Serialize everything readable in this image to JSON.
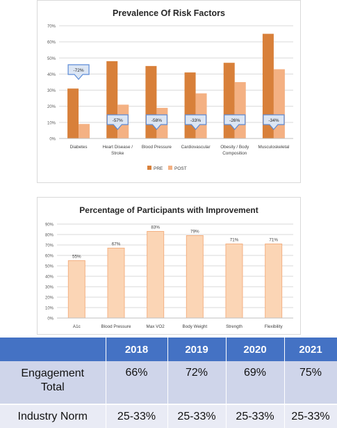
{
  "chart_data": [
    {
      "type": "bar",
      "title": "Prevalence Of Risk Factors",
      "categories": [
        "Diabetes",
        "Heart Disease / Stroke",
        "Blood Pressure",
        "Cardiovascular",
        "Obesity / Body Composition",
        "Musculoskeletal"
      ],
      "category_lines": [
        [
          "Diabetes"
        ],
        [
          "Heart Disease /",
          "Stroke"
        ],
        [
          "Blood Pressure"
        ],
        [
          "Cardiovascular"
        ],
        [
          "Obesity / Body",
          "Composition"
        ],
        [
          "Musculoskeletal"
        ]
      ],
      "series": [
        {
          "name": "PRE",
          "values": [
            31,
            48,
            45,
            41,
            47,
            65
          ],
          "color": "#d8803a"
        },
        {
          "name": "POST",
          "values": [
            9,
            21,
            19,
            28,
            35,
            43
          ],
          "color": "#f4b183"
        }
      ],
      "annotations": [
        "-72%",
        "-57%",
        "-58%",
        "-33%",
        "-26%",
        "-34%"
      ],
      "ylim": [
        0,
        70
      ],
      "yticks": [
        "0%",
        "10%",
        "20%",
        "30%",
        "40%",
        "50%",
        "60%",
        "70%"
      ],
      "grid": true,
      "legend_position": "bottom"
    },
    {
      "type": "bar",
      "title": "Percentage of Participants with Improvement",
      "categories": [
        "A1c",
        "Blood Pressure",
        "Max VO2",
        "Body Weight",
        "Strength",
        "Flexibility"
      ],
      "values": [
        55,
        67,
        83,
        79,
        71,
        71
      ],
      "data_labels": [
        "55%",
        "67%",
        "83%",
        "79%",
        "71%",
        "71%"
      ],
      "ylim": [
        0,
        90
      ],
      "yticks": [
        "0%",
        "10%",
        "20%",
        "30%",
        "40%",
        "50%",
        "60%",
        "70%",
        "80%",
        "90%"
      ],
      "grid": true,
      "color": "#fbd5b5",
      "border_color": "#f4b183"
    }
  ],
  "table": {
    "headers": [
      "",
      "2018",
      "2019",
      "2020",
      "2021"
    ],
    "rows": [
      {
        "label_lines": [
          "Engagement",
          "Total"
        ],
        "values": [
          "66%",
          "72%",
          "69%",
          "75%"
        ]
      },
      {
        "label_lines": [
          "Industry Norm"
        ],
        "values": [
          "25-33%",
          "25-33%",
          "25-33%",
          "25-33%"
        ]
      }
    ]
  },
  "colors": {
    "table_header": "#4472c4",
    "table_row1": "#cfd5ea",
    "table_row2": "#e9ebf5",
    "callout_fill": "#dce6f4",
    "callout_border": "#5b8bd6"
  }
}
